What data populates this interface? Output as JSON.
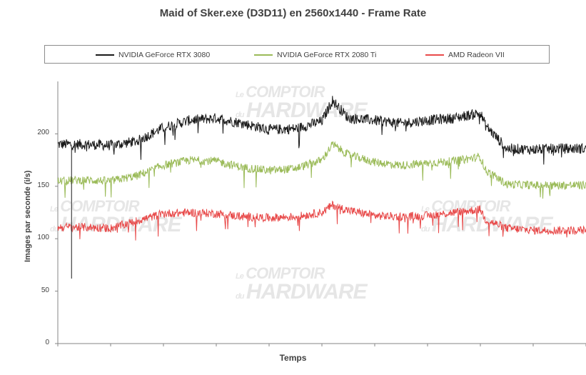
{
  "chart_data": {
    "type": "line",
    "title": "Maid of Sker.exe (D3D11) en 2560x1440 - Frame Rate",
    "xlabel": "Temps",
    "ylabel": "Images par seconde (i/s)",
    "ylim": [
      0,
      250
    ],
    "yticks": [
      "0",
      "50",
      "100",
      "150",
      "200"
    ],
    "grid": false,
    "legend": "top",
    "x": [
      0,
      5,
      10,
      15,
      20,
      25,
      30,
      35,
      40,
      45,
      50,
      52,
      55,
      60,
      65,
      70,
      75,
      80,
      81,
      85,
      90,
      95,
      100
    ],
    "series": [
      {
        "name": "NVIDIA GeForce RTX 3080",
        "color": "#1a1a1a",
        "values": [
          190,
          190,
          189,
          193,
          206,
          213,
          215,
          210,
          204,
          205,
          212,
          232,
          215,
          213,
          210,
          213,
          215,
          220,
          208,
          186,
          185,
          186,
          186
        ]
      },
      {
        "name": "NVIDIA GeForce RTX 2080 Ti",
        "color": "#9bbb59",
        "values": [
          155,
          156,
          155,
          160,
          170,
          175,
          174,
          168,
          165,
          167,
          175,
          190,
          180,
          173,
          170,
          172,
          174,
          178,
          165,
          152,
          151,
          151,
          151
        ]
      },
      {
        "name": "AMD Radeon VII",
        "color": "#e84a4a",
        "values": [
          111,
          111,
          110,
          117,
          124,
          125,
          124,
          121,
          120,
          121,
          125,
          132,
          127,
          122,
          121,
          122,
          125,
          128,
          118,
          110,
          108,
          108,
          108
        ]
      }
    ]
  },
  "watermark": {
    "line1": "Le",
    "line2": "COMPTOIR",
    "line3": "du",
    "line4": "HARDWARE"
  }
}
